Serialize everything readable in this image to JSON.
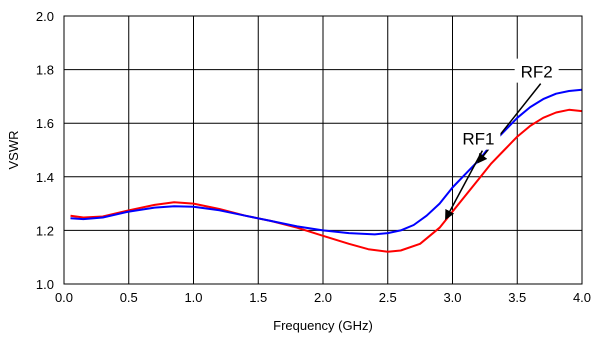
{
  "chart_data": {
    "type": "line",
    "xlabel": "Frequency (GHz)",
    "ylabel": "VSWR",
    "xlim": [
      0.0,
      4.0
    ],
    "ylim": [
      1.0,
      2.0
    ],
    "x_ticks": [
      0.0,
      0.5,
      1.0,
      1.5,
      2.0,
      2.5,
      3.0,
      3.5,
      4.0
    ],
    "y_ticks": [
      1.0,
      1.2,
      1.4,
      1.6,
      1.8,
      2.0
    ],
    "x_tick_labels": [
      "0.0",
      "0.5",
      "1.0",
      "1.5",
      "2.0",
      "2.5",
      "3.0",
      "3.5",
      "4.0"
    ],
    "y_tick_labels": [
      "1.0",
      "1.2",
      "1.4",
      "1.6",
      "1.8",
      "2.0"
    ],
    "grid": true,
    "series": [
      {
        "name": "RF1",
        "color": "#ff0000",
        "points": [
          [
            0.05,
            1.255
          ],
          [
            0.15,
            1.248
          ],
          [
            0.3,
            1.252
          ],
          [
            0.5,
            1.275
          ],
          [
            0.7,
            1.295
          ],
          [
            0.85,
            1.305
          ],
          [
            1.0,
            1.3
          ],
          [
            1.2,
            1.28
          ],
          [
            1.4,
            1.255
          ],
          [
            1.6,
            1.235
          ],
          [
            1.8,
            1.21
          ],
          [
            2.0,
            1.18
          ],
          [
            2.2,
            1.15
          ],
          [
            2.35,
            1.13
          ],
          [
            2.5,
            1.12
          ],
          [
            2.6,
            1.125
          ],
          [
            2.75,
            1.15
          ],
          [
            2.9,
            1.21
          ],
          [
            3.0,
            1.27
          ],
          [
            3.1,
            1.33
          ],
          [
            3.2,
            1.39
          ],
          [
            3.3,
            1.45
          ],
          [
            3.4,
            1.5
          ],
          [
            3.5,
            1.55
          ],
          [
            3.6,
            1.59
          ],
          [
            3.7,
            1.62
          ],
          [
            3.8,
            1.64
          ],
          [
            3.9,
            1.65
          ],
          [
            4.0,
            1.645
          ]
        ]
      },
      {
        "name": "RF2",
        "color": "#0000ff",
        "points": [
          [
            0.05,
            1.245
          ],
          [
            0.15,
            1.242
          ],
          [
            0.3,
            1.248
          ],
          [
            0.5,
            1.27
          ],
          [
            0.7,
            1.285
          ],
          [
            0.85,
            1.29
          ],
          [
            1.0,
            1.288
          ],
          [
            1.2,
            1.275
          ],
          [
            1.4,
            1.255
          ],
          [
            1.6,
            1.235
          ],
          [
            1.8,
            1.215
          ],
          [
            2.0,
            1.2
          ],
          [
            2.2,
            1.19
          ],
          [
            2.4,
            1.185
          ],
          [
            2.5,
            1.19
          ],
          [
            2.6,
            1.2
          ],
          [
            2.7,
            1.22
          ],
          [
            2.8,
            1.255
          ],
          [
            2.9,
            1.3
          ],
          [
            3.0,
            1.36
          ],
          [
            3.1,
            1.41
          ],
          [
            3.2,
            1.46
          ],
          [
            3.3,
            1.52
          ],
          [
            3.4,
            1.57
          ],
          [
            3.5,
            1.62
          ],
          [
            3.6,
            1.66
          ],
          [
            3.7,
            1.69
          ],
          [
            3.8,
            1.71
          ],
          [
            3.9,
            1.72
          ],
          [
            4.0,
            1.725
          ]
        ]
      }
    ],
    "annotations": [
      {
        "text": "RF2",
        "text_at": [
          3.65,
          1.77
        ],
        "arrow_to": [
          3.2,
          1.455
        ]
      },
      {
        "text": "RF1",
        "text_at": [
          3.2,
          1.52
        ],
        "arrow_to": [
          2.95,
          1.245
        ]
      }
    ]
  }
}
